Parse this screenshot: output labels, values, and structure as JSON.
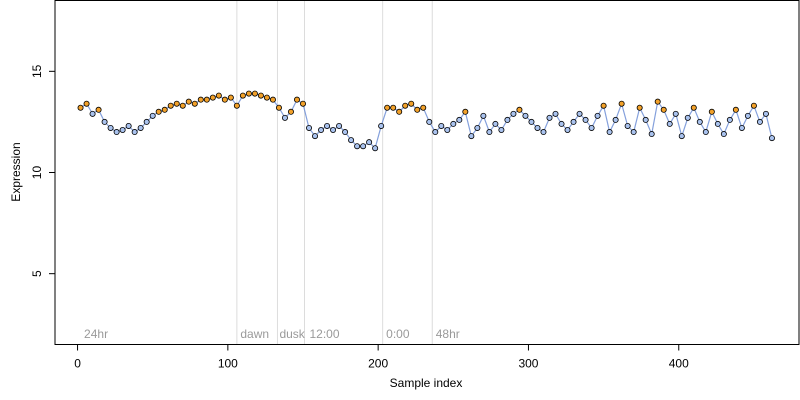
{
  "chart_data": {
    "type": "scatter",
    "title": "",
    "xlabel": "Sample index",
    "ylabel": "Expression",
    "xlim": [
      -15,
      480
    ],
    "ylim": [
      1.5,
      18.5
    ],
    "x_ticks": [
      0,
      100,
      200,
      300,
      400
    ],
    "y_ticks": [
      5,
      10,
      15
    ],
    "grid": false,
    "phase_lines": [
      106,
      133,
      151,
      203,
      236
    ],
    "phase_labels": [
      {
        "text": "24hr",
        "x": 3
      },
      {
        "text": "dawn",
        "x": 107
      },
      {
        "text": "dusk",
        "x": 133
      },
      {
        "text": "12:00",
        "x": 153
      },
      {
        "text": "0:00",
        "x": 204
      },
      {
        "text": "48hr",
        "x": 237
      }
    ],
    "colors": {
      "fitted_line": "#6f8fd6",
      "point_high": "#f2a12a",
      "point_low": "#a9c2ee",
      "point_edge": "#000000",
      "phase_line": "#dcdcdc",
      "phase_text": "#9a9a9a"
    },
    "series": [
      {
        "x": [
          2,
          6,
          10,
          14,
          18,
          22,
          26,
          30,
          34,
          38,
          42,
          46,
          50,
          54,
          58,
          62,
          66,
          70,
          74,
          78,
          82,
          86,
          90,
          94,
          98,
          102,
          106,
          110,
          114,
          118,
          122,
          126,
          130,
          134,
          138,
          142,
          146,
          150,
          154,
          158,
          162,
          166,
          170,
          174,
          178,
          182,
          186,
          190,
          194,
          198,
          202,
          206,
          210,
          214,
          218,
          222,
          226,
          230,
          234,
          238,
          242,
          246,
          250,
          254,
          258,
          262,
          266,
          270,
          274,
          278,
          282,
          286,
          290,
          294,
          298,
          302,
          306,
          310,
          314,
          318,
          322,
          326,
          330,
          334,
          338,
          342,
          346,
          350,
          354,
          358,
          362,
          366,
          370,
          374,
          378,
          382,
          386,
          390,
          394,
          398,
          402,
          406,
          410,
          414,
          418,
          422,
          426,
          430,
          434,
          438,
          442,
          446,
          450,
          454,
          458,
          462
        ],
        "y": [
          13.2,
          13.4,
          12.9,
          13.1,
          12.5,
          12.2,
          12.0,
          12.1,
          12.3,
          12.0,
          12.2,
          12.5,
          12.8,
          13.0,
          13.1,
          13.3,
          13.4,
          13.3,
          13.5,
          13.4,
          13.6,
          13.6,
          13.7,
          13.8,
          13.6,
          13.7,
          13.3,
          13.8,
          13.9,
          13.9,
          13.8,
          13.7,
          13.6,
          13.2,
          12.7,
          13.0,
          13.6,
          13.4,
          12.2,
          11.8,
          12.1,
          12.3,
          12.1,
          12.3,
          12.0,
          11.6,
          11.3,
          11.3,
          11.5,
          11.2,
          12.3,
          13.2,
          13.2,
          13.0,
          13.3,
          13.4,
          13.1,
          13.2,
          12.5,
          12.0,
          12.3,
          12.1,
          12.4,
          12.6,
          13.0,
          11.8,
          12.2,
          12.8,
          12.0,
          12.4,
          12.1,
          12.6,
          12.9,
          13.1,
          12.8,
          12.5,
          12.2,
          12.0,
          12.7,
          12.9,
          12.4,
          12.1,
          12.5,
          12.9,
          12.6,
          12.2,
          12.8,
          13.3,
          12.0,
          12.6,
          13.4,
          12.3,
          12.0,
          13.2,
          12.6,
          11.9,
          13.5,
          13.1,
          12.4,
          12.9,
          11.8,
          12.7,
          13.2,
          12.5,
          12.0,
          13.0,
          12.4,
          11.9,
          12.6,
          13.1,
          12.2,
          12.8,
          13.3,
          12.5,
          12.9,
          11.7
        ]
      }
    ]
  }
}
